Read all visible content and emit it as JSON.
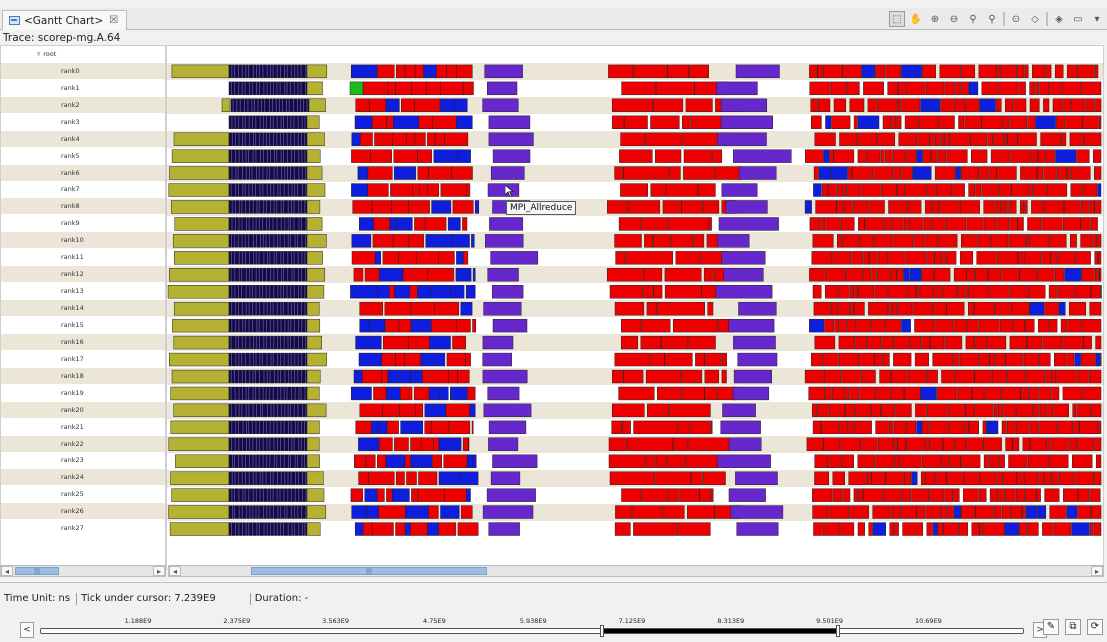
{
  "window": {
    "tab_title": "<Gantt Chart>",
    "tab_close": "☒",
    "toolbar_icons": [
      {
        "name": "select-tool-icon",
        "glyph": "⬚",
        "active": true
      },
      {
        "name": "hand-tool-icon",
        "glyph": "✋"
      },
      {
        "name": "zoom-in-icon",
        "glyph": "⊕"
      },
      {
        "name": "zoom-out-icon",
        "glyph": "⊖"
      },
      {
        "name": "zoom-fit-icon",
        "glyph": "⚲"
      },
      {
        "name": "zoom-selection-icon",
        "glyph": "⚲"
      },
      {
        "name": "view-toggle-icon",
        "glyph": "⊙"
      },
      {
        "name": "filter-icon",
        "glyph": "◇"
      },
      {
        "name": "legend-icon",
        "glyph": "◈"
      },
      {
        "name": "minimize-icon",
        "glyph": "▭"
      },
      {
        "name": "view-menu-icon",
        "glyph": "▾"
      }
    ]
  },
  "trace": {
    "label": "Trace: scorep-mg.A.64"
  },
  "tree": {
    "root_label": "root",
    "ranks": [
      "rank0",
      "rank1",
      "rank2",
      "rank3",
      "rank4",
      "rank5",
      "rank6",
      "rank7",
      "rank8",
      "rank9",
      "rank10",
      "rank11",
      "rank12",
      "rank13",
      "rank14",
      "rank15",
      "rank16",
      "rank17",
      "rank18",
      "rank19",
      "rank20",
      "rank21",
      "rank22",
      "rank23",
      "rank24",
      "rank25",
      "rank26",
      "rank27"
    ]
  },
  "colors": {
    "olive": "#b5b133",
    "dark": "#140c3e",
    "red": "#ee0000",
    "blue": "#0f1ddc",
    "purple": "#6627cc",
    "green": "#1cbc1c",
    "shade": "#ece6d8"
  },
  "tooltip": {
    "text": "MPI_Allreduce"
  },
  "scrollbars": {
    "left_glyph": "◂▸",
    "thumb_glyph": "|||"
  },
  "status": {
    "time_unit": "Time Unit:  ns",
    "tick_under_cursor": "Tick under cursor:  7.239E9",
    "duration": "Duration:  -"
  },
  "timebar": {
    "ticks": [
      "1.188E9",
      "2.375E9",
      "3.563E9",
      "4.75E9",
      "5.938E9",
      "7.125E9",
      "8.313E9",
      "9.501E9",
      "10.69E9"
    ],
    "prev_glyph": "<",
    "next_glyph": ">",
    "selection_start_fraction": 0.57,
    "selection_end_fraction": 0.81
  },
  "bottom_icons": [
    {
      "name": "pencil-icon",
      "glyph": "✎"
    },
    {
      "name": "copy-icon",
      "glyph": "⧉"
    },
    {
      "name": "refresh-icon",
      "glyph": "⟳"
    }
  ]
}
